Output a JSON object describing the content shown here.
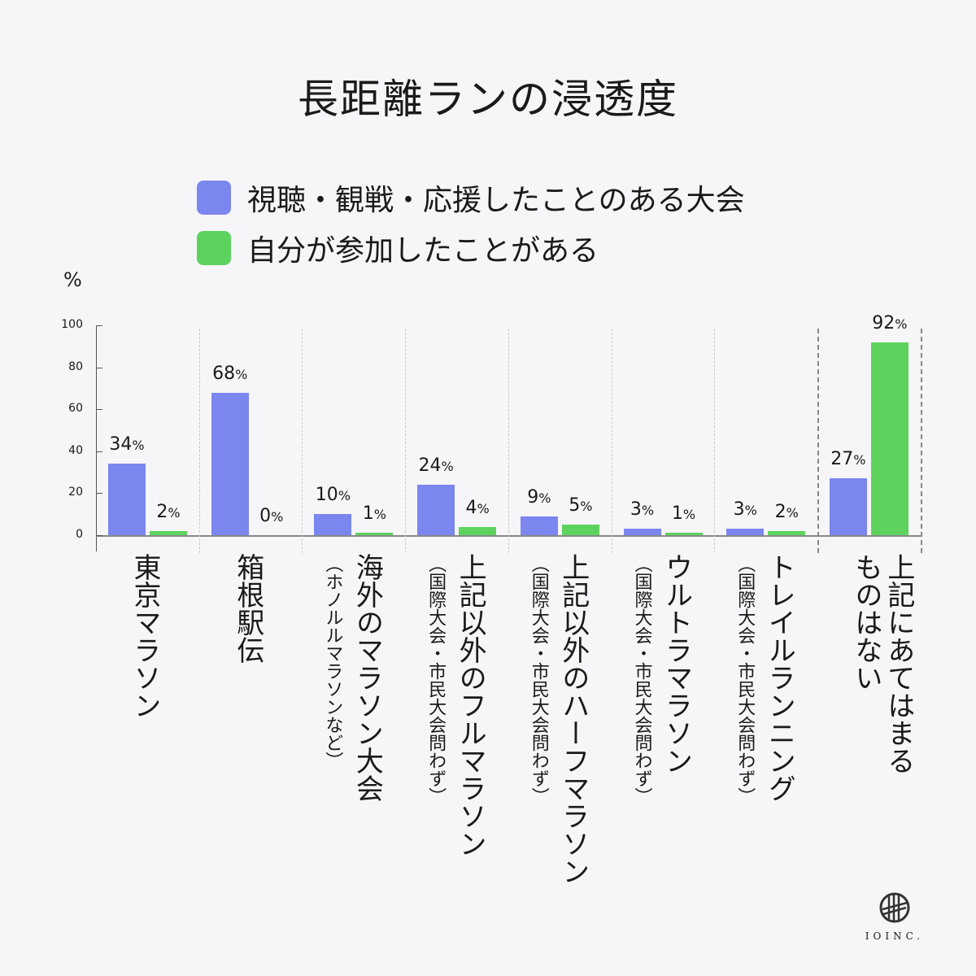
{
  "title": "長距離ランの浸透度",
  "legend": [
    {
      "label": "視聴・観戦・応援したことのある大会",
      "color": "#7b86ee"
    },
    {
      "label": "自分が参加したことがある",
      "color": "#5dd35d"
    }
  ],
  "unit": "%",
  "chart_data": {
    "type": "bar",
    "title": "長距離ランの浸透度",
    "ylabel": "%",
    "ylim": [
      0,
      100
    ],
    "yticks": [
      0,
      20,
      40,
      60,
      80,
      100
    ],
    "categories": [
      {
        "label": "東京マラソン",
        "sub": ""
      },
      {
        "label": "箱根駅伝",
        "sub": ""
      },
      {
        "label": "海外のマラソン大会",
        "sub": "（ホノルルマラソンなど）"
      },
      {
        "label": "上記以外のフルマラソン",
        "sub": "（国際大会・市民大会問わず）"
      },
      {
        "label": "上記以外のハーフマラソン",
        "sub": "（国際大会・市民大会問わず）"
      },
      {
        "label": "ウルトラマラソン",
        "sub": "（国際大会・市民大会問わず）"
      },
      {
        "label": "トレイルランニング",
        "sub": "（国際大会・市民大会問わず）"
      },
      {
        "label": "上記にあてはまるものはない",
        "sub": ""
      }
    ],
    "series": [
      {
        "name": "視聴・観戦・応援したことのある大会",
        "color": "#7b86ee",
        "values": [
          34,
          68,
          10,
          24,
          9,
          3,
          3,
          27
        ]
      },
      {
        "name": "自分が参加したことがある",
        "color": "#5dd35d",
        "values": [
          2,
          0,
          1,
          4,
          5,
          1,
          2,
          92
        ]
      }
    ],
    "legend_position": "top"
  },
  "logo": {
    "text": "IOINC."
  }
}
